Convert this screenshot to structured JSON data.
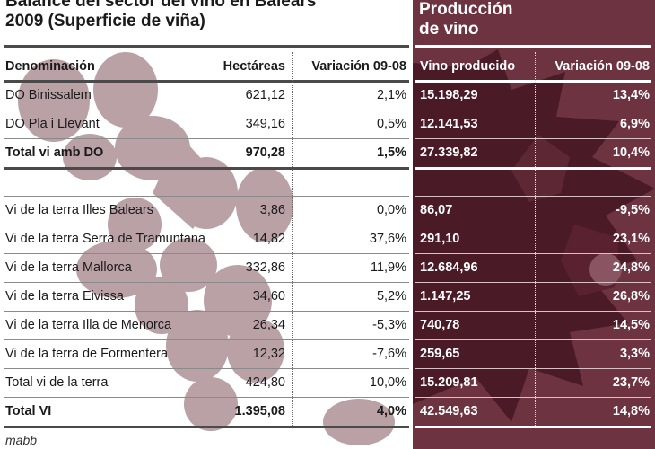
{
  "title": {
    "line1": "Balance del sector del vino en Balears",
    "line2": "2009 (Superficie de viña)"
  },
  "panel_title": {
    "line1": "Producción",
    "line2": "de vino"
  },
  "colors": {
    "panel": "#6e3340",
    "panel_dark": "#4a1a26",
    "grape": "#b9a1a5"
  },
  "chart_data": {
    "type": "table",
    "columns": [
      "Denominación",
      "Hectáreas",
      "Variación 09-08",
      "Vino producido",
      "Variación 09-08"
    ],
    "rows": [
      {
        "name": "DO Binissalem",
        "hectareas": "621,12",
        "var_sup": "2,1%",
        "vino": "15.198,29",
        "var_vino": "13,4%",
        "bold": false
      },
      {
        "name": "DO Pla i Llevant",
        "hectareas": "349,16",
        "var_sup": "0,5%",
        "vino": "12.141,53",
        "var_vino": "6,9%",
        "bold": false
      },
      {
        "name": "Total vi amb DO",
        "hectareas": "970,28",
        "var_sup": "1,5%",
        "vino": "27.339,82",
        "var_vino": "10,4%",
        "bold": true
      },
      {
        "name": "Vi de la terra Illes Balears",
        "hectareas": "3,86",
        "var_sup": "0,0%",
        "vino": "86,07",
        "var_vino": "-9,5%",
        "bold": false
      },
      {
        "name": "Vi de la terra Serra de Tramuntana",
        "hectareas": "14,82",
        "var_sup": "37,6%",
        "vino": "291,10",
        "var_vino": "23,1%",
        "bold": false
      },
      {
        "name": "Vi de la terra Mallorca",
        "hectareas": "332,86",
        "var_sup": "11,9%",
        "vino": "12.684,96",
        "var_vino": "24,8%",
        "bold": false
      },
      {
        "name": "Vi de la terra Eivissa",
        "hectareas": "34,60",
        "var_sup": "5,2%",
        "vino": "1.147,25",
        "var_vino": "26,8%",
        "bold": false
      },
      {
        "name": "Vi de la terra Illa de Menorca",
        "hectareas": "26,34",
        "var_sup": "-5,3%",
        "vino": "740,78",
        "var_vino": "14,5%",
        "bold": false
      },
      {
        "name": "Vi de la terra de Formentera",
        "hectareas": "12,32",
        "var_sup": "-7,6%",
        "vino": "259,65",
        "var_vino": "3,3%",
        "bold": false
      },
      {
        "name": "Total vi de la terra",
        "hectareas": "424,80",
        "var_sup": "10,0%",
        "vino": "15.209,81",
        "var_vino": "23,7%",
        "bold": false
      },
      {
        "name": "Total VI",
        "hectareas": "1.395,08",
        "var_sup": "4,0%",
        "vino": "42.549,63",
        "var_vino": "14,8%",
        "bold": true
      }
    ]
  },
  "footer": "mabb"
}
